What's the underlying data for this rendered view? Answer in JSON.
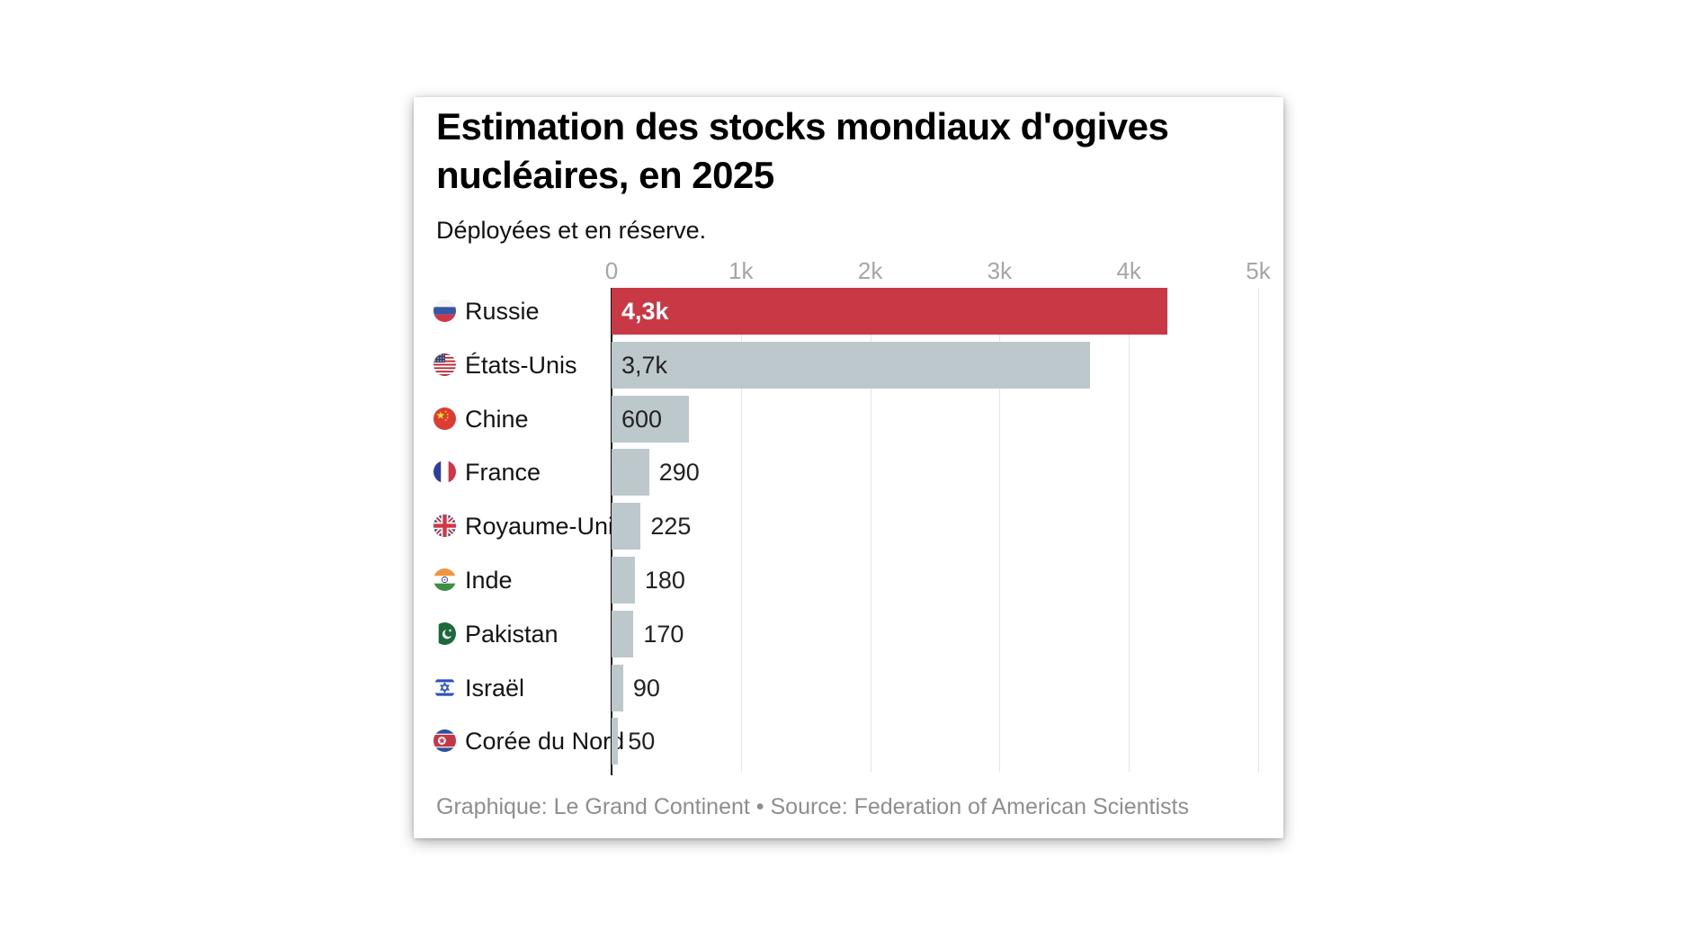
{
  "card": {
    "title_lines": [
      "Estimation des stocks mondiaux d'ogives",
      "nucléaires, en 2025"
    ],
    "subtitle": "Déployées et en réserve.",
    "footer": "Graphique: Le Grand Continent • Source: Federation of American Scientists"
  },
  "colors": {
    "highlight_bar": "#c93845",
    "default_bar": "#bdc8cd",
    "highlight_value_text": "#ffffff",
    "value_text": "#222222",
    "country_text": "#141414",
    "tick_text": "#a6a6a6",
    "gridline": "#e4e4e4",
    "axis_line": "#111111",
    "footer_text": "#8e8e8e"
  },
  "chart_data": {
    "type": "bar",
    "orientation": "horizontal",
    "title": "Estimation des stocks mondiaux d'ogives nucléaires, en 2025",
    "subtitle": "Déployées et en réserve.",
    "source": "Graphique: Le Grand Continent • Source: Federation of American Scientists",
    "categories": [
      "Russie",
      "États-Unis",
      "Chine",
      "France",
      "Royaume-Uni",
      "Inde",
      "Pakistan",
      "Israël",
      "Corée du Nord"
    ],
    "values": [
      4300,
      3700,
      600,
      290,
      225,
      180,
      170,
      90,
      50
    ],
    "value_labels": [
      "4,3k",
      "3,7k",
      "600",
      "290",
      "225",
      "180",
      "170",
      "90",
      "50"
    ],
    "flags": [
      "ru",
      "us",
      "cn",
      "fr",
      "gb",
      "in",
      "pk",
      "il",
      "kp"
    ],
    "flag_names": [
      "russia",
      "united-states",
      "china",
      "france",
      "united-kingdom",
      "india",
      "pakistan",
      "israel",
      "north-korea"
    ],
    "highlight_index": 0,
    "x_ticks": [
      {
        "value": 0,
        "label": "0"
      },
      {
        "value": 1000,
        "label": "1k"
      },
      {
        "value": 2000,
        "label": "2k"
      },
      {
        "value": 3000,
        "label": "3k"
      },
      {
        "value": 4000,
        "label": "4k"
      },
      {
        "value": 5000,
        "label": "5k"
      }
    ],
    "xlim": [
      0,
      5000
    ],
    "grid": "vertical-gridlines",
    "legend": "none"
  }
}
